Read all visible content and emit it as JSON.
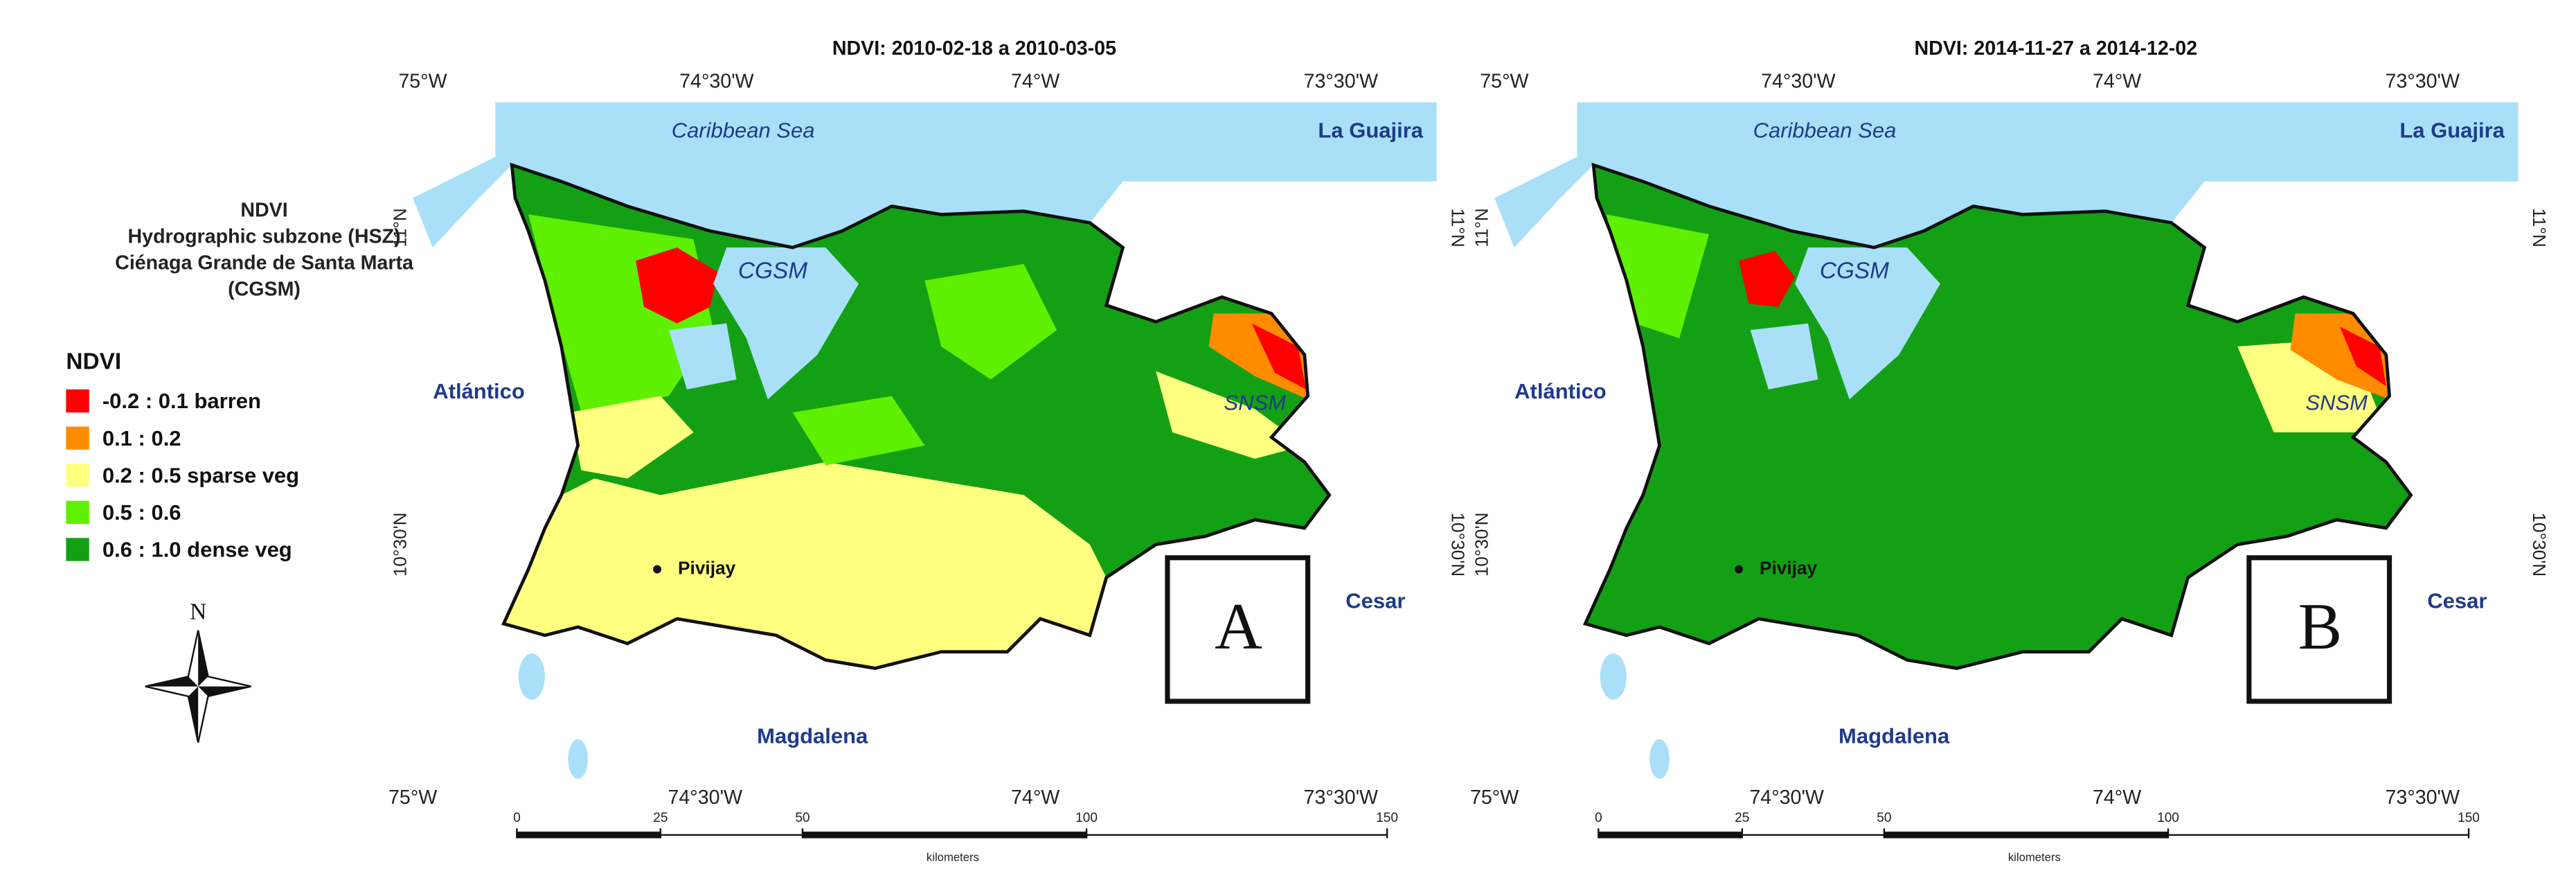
{
  "legend": {
    "heading": [
      "NDVI",
      "Hydrographic subzone (HSZ)",
      "Ciénaga Grande de Santa Marta",
      "(CGSM)"
    ],
    "title": "NDVI",
    "items": [
      {
        "label": "-0.2 : 0.1 barren",
        "color": "#ff0000"
      },
      {
        "label": "0.1 : 0.2",
        "color": "#ff8c00"
      },
      {
        "label": "0.2 : 0.5 sparse veg",
        "color": "#ffff80"
      },
      {
        "label": "0.5 : 0.6",
        "color": "#5ef000"
      },
      {
        "label": "0.6 : 1.0 dense veg",
        "color": "#14a014"
      }
    ]
  },
  "north_arrow": {
    "label": "N"
  },
  "panels": [
    {
      "title": "NDVI: 2010-02-18 a 2010-03-05",
      "letter": "A"
    },
    {
      "title": "NDVI: 2014-11-27 a 2014-12-02",
      "letter": "B"
    }
  ],
  "grid_labels": {
    "lon_top": [
      "75°W",
      "74°30'W",
      "74°W",
      "73°30'W"
    ],
    "lon_bottom": [
      "75°W",
      "74°30'W",
      "74°W",
      "73°30'W"
    ],
    "lat": [
      "11°N",
      "10°30'N"
    ]
  },
  "places": {
    "sea": "Caribbean Sea",
    "north_dept": "La Guajira",
    "lagoon": "CGSM",
    "west_dept": "Atlántico",
    "sierra": "SNSM",
    "town": "Pivijay",
    "east_dept": "Cesar",
    "south_dept": "Magdalena"
  },
  "scale": {
    "ticks": [
      0,
      25,
      50,
      100,
      150
    ],
    "unit": "kilometers"
  }
}
